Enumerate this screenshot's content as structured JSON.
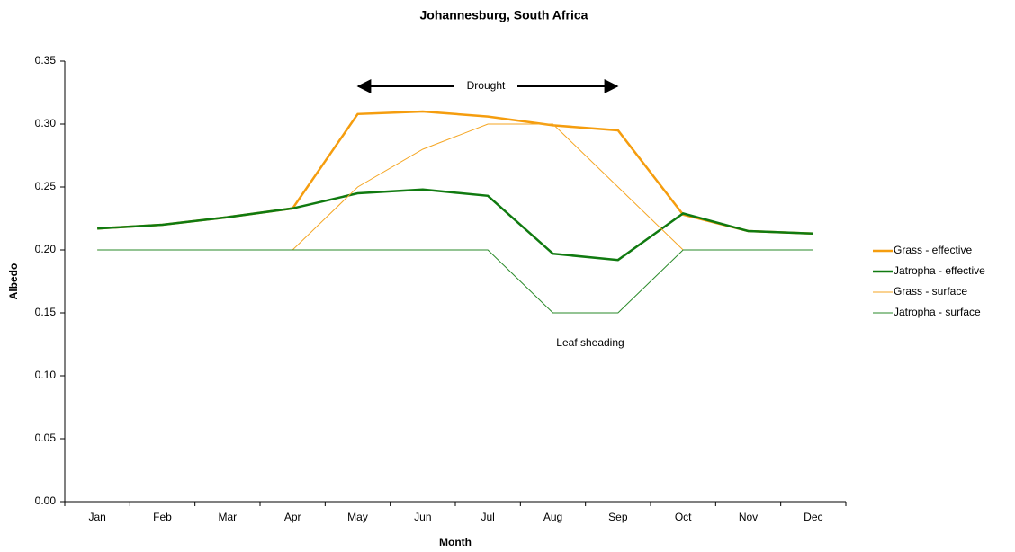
{
  "chart_data": {
    "type": "line",
    "title": "Johannesburg, South Africa",
    "x_label": "Month",
    "y_label": "Albedo",
    "categories": [
      "Jan",
      "Feb",
      "Mar",
      "Apr",
      "May",
      "Jun",
      "Jul",
      "Aug",
      "Sep",
      "Oct",
      "Nov",
      "Dec"
    ],
    "series": [
      {
        "name": "Grass - effective",
        "color": "#f59d0e",
        "width": 2.5,
        "values": [
          0.217,
          0.22,
          0.226,
          0.233,
          0.308,
          0.31,
          0.306,
          0.299,
          0.295,
          0.228,
          0.215,
          0.213
        ]
      },
      {
        "name": "Jatropha - effective",
        "color": "#107a10",
        "width": 2.5,
        "values": [
          0.217,
          0.22,
          0.226,
          0.233,
          0.245,
          0.248,
          0.243,
          0.197,
          0.192,
          0.229,
          0.215,
          0.213
        ]
      },
      {
        "name": "Grass - surface",
        "color": "#f5a623",
        "width": 1,
        "values": [
          0.2,
          0.2,
          0.2,
          0.2,
          0.25,
          0.28,
          0.3,
          0.3,
          0.25,
          0.2,
          0.2,
          0.2
        ]
      },
      {
        "name": "Jatropha - surface",
        "color": "#2a8a2a",
        "width": 1,
        "values": [
          0.2,
          0.2,
          0.2,
          0.2,
          0.2,
          0.2,
          0.2,
          0.15,
          0.15,
          0.2,
          0.2,
          0.2
        ]
      }
    ],
    "ylim": [
      0,
      0.35
    ],
    "yticks": [
      {
        "value": 0,
        "label": "0.00"
      },
      {
        "value": 0.05,
        "label": "0.05"
      },
      {
        "value": 0.1,
        "label": "0.10"
      },
      {
        "value": 0.15,
        "label": "0.15"
      },
      {
        "value": 0.2,
        "label": "0.20"
      },
      {
        "value": 0.25,
        "label": "0.25"
      },
      {
        "value": 0.3,
        "label": "0.30"
      },
      {
        "value": 0.35,
        "label": "0.35"
      }
    ],
    "grid": false,
    "legend": "right",
    "annotations": [
      "Drought",
      "Leaf sheading"
    ]
  }
}
